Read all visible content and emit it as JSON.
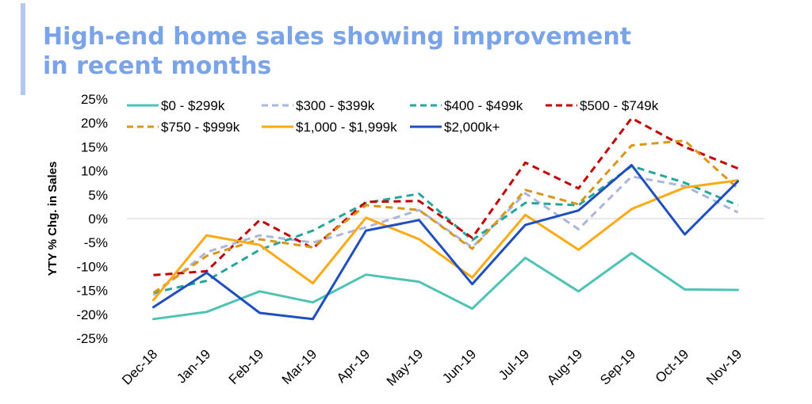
{
  "title": {
    "line1": "High-end home sales showing improvement",
    "line2": "in recent months"
  },
  "chart_data": {
    "type": "line",
    "title": "High-end home sales showing improvement in recent months",
    "xlabel": "",
    "ylabel": "YTY % Chg. in Sales",
    "ylim": [
      -25,
      25
    ],
    "yticks": [
      25,
      20,
      15,
      10,
      5,
      0,
      -5,
      -10,
      -15,
      -20,
      -25
    ],
    "ytick_labels": [
      "25%",
      "20%",
      "15%",
      "10%",
      "5%",
      "0%",
      "-5%",
      "-10%",
      "-15%",
      "-20%",
      "-25%"
    ],
    "grid": false,
    "legend_position": "top",
    "categories": [
      "Dec-18",
      "Jan-19",
      "Feb-19",
      "Mar-19",
      "Apr-19",
      "May-19",
      "Jun-19",
      "Jul-19",
      "Aug-19",
      "Sep-19",
      "Oct-19",
      "Nov-19"
    ],
    "series": [
      {
        "name": "$0 - $299k",
        "color": "#4fc3b3",
        "dash": "solid",
        "values": [
          -21,
          -19.5,
          -15.2,
          -17.5,
          -11.7,
          -13.2,
          -18.8,
          -8.2,
          -15.2,
          -7.2,
          -14.8,
          -14.9
        ]
      },
      {
        "name": "$300 - $399k",
        "color": "#aab6dc",
        "dash": "dashed",
        "values": [
          -16,
          -7,
          -3.5,
          -5,
          -1.8,
          1.8,
          -6,
          5.3,
          -2.2,
          8.8,
          6.8,
          1.3
        ]
      },
      {
        "name": "$400 - $499k",
        "color": "#26a69a",
        "dash": "dashed",
        "values": [
          -15.5,
          -13,
          -6.5,
          -2.5,
          3.3,
          5.2,
          -4.5,
          3.3,
          2.8,
          11,
          7.5,
          2.8
        ]
      },
      {
        "name": "$500 - $749k",
        "color": "#c00000",
        "dash": "dashed",
        "values": [
          -11.8,
          -11,
          -0.3,
          -6.2,
          3.5,
          3.7,
          -4,
          11.7,
          6.3,
          21,
          15,
          10.5
        ]
      },
      {
        "name": "$750 - $999k",
        "color": "#d9961a",
        "dash": "dashed",
        "values": [
          -15.5,
          -7.8,
          -4.3,
          -6,
          2.8,
          1.8,
          -6.3,
          6,
          3,
          15.3,
          16.3,
          6.3
        ]
      },
      {
        "name": "$1,000 - $1,999k",
        "color": "#ffa914",
        "dash": "solid",
        "values": [
          -17,
          -3.5,
          -5.5,
          -13.5,
          0.2,
          -4.3,
          -12.3,
          0.8,
          -6.5,
          2,
          6.5,
          8
        ]
      },
      {
        "name": "$2,000k+",
        "color": "#1f4fbe",
        "dash": "solid",
        "values": [
          -18.5,
          -11.3,
          -19.7,
          -21,
          -2.5,
          -0.3,
          -13.7,
          -1.3,
          1.7,
          11.2,
          -3.3,
          7.8
        ]
      }
    ]
  }
}
